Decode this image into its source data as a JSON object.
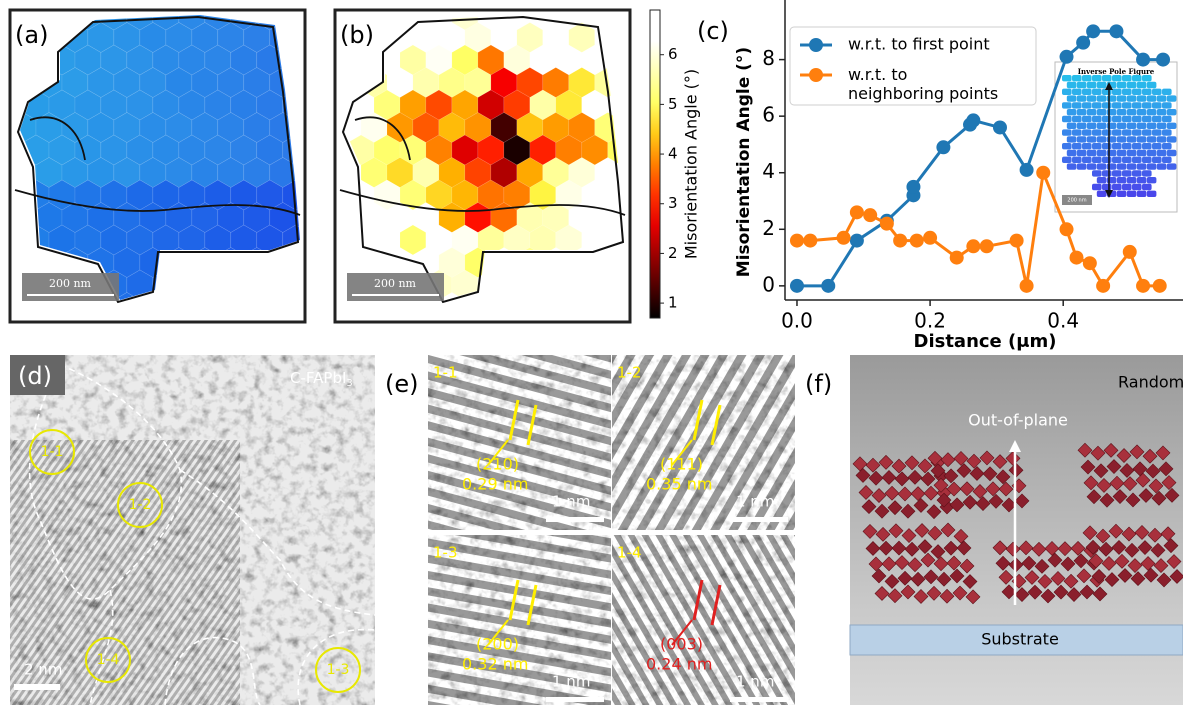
{
  "panels": {
    "a": {
      "label": "(a)",
      "scale_bar": "200 nm"
    },
    "b": {
      "label": "(b)",
      "scale_bar": "200 nm",
      "colorbar": {
        "label": "Misorientation Angle (°)",
        "lim": [
          0.7,
          6.9
        ],
        "ticks": [
          1,
          2,
          3,
          4,
          5,
          6
        ]
      }
    },
    "c": {
      "label": "(c)",
      "inset_title": "Inverse Pole Figure",
      "inset_scale_bar": "200 nm"
    },
    "d": {
      "label": "(d)",
      "material": "C-FAPbI",
      "material_subscript": "3",
      "regions": [
        "1-1",
        "1-2",
        "1-4",
        "1-3"
      ],
      "scale_bar": "2 nm"
    },
    "e": {
      "label": "(e)",
      "subpanels": [
        {
          "label": "1-1",
          "plane": "(210)",
          "spacing": "0.29 nm",
          "scale_bar": "1 nm"
        },
        {
          "label": "1-2",
          "plane": "(111)",
          "spacing": "0.35 nm",
          "scale_bar": "1 nm"
        },
        {
          "label": "1-3",
          "plane": "(200)",
          "spacing": "0.32 nm",
          "scale_bar": "1 nm"
        },
        {
          "label": "1-4",
          "plane": "(003)",
          "spacing": "0.24 nm",
          "scale_bar": "1 nm"
        }
      ]
    },
    "f": {
      "label": "(f)",
      "corner_text": "Random",
      "arrow_label": "Out-of-plane",
      "base_label": "Substrate"
    }
  },
  "chart_data": {
    "type": "line",
    "x_label": "Distance (μm)",
    "y_label": "Misorientation Angle (°)",
    "xlim": [
      -0.018,
      0.58
    ],
    "ylim": [
      -0.5,
      9.4
    ],
    "xticks": [
      {
        "value": 0,
        "label": "0.0"
      },
      0.2,
      0.4
    ],
    "yticks": [
      0,
      2,
      4,
      6,
      8
    ],
    "legend": "upper left",
    "series": [
      {
        "name": "w.r.t. to first point",
        "color": "#1f77b4",
        "x": [
          0,
          0.047,
          0.09,
          0.135,
          0.175,
          0.175,
          0.22,
          0.26,
          0.265,
          0.305,
          0.345,
          0.405,
          0.43,
          0.445,
          0.48,
          0.52,
          0.55
        ],
        "values": [
          0,
          0,
          1.6,
          2.3,
          3.2,
          3.5,
          4.9,
          5.7,
          5.85,
          5.6,
          4.1,
          8.1,
          8.6,
          9.0,
          9.0,
          8.0,
          8.0
        ]
      },
      {
        "name": "w.r.t. to\nneighboring points",
        "color": "#ff7f0e",
        "x": [
          0,
          0.02,
          0.07,
          0.09,
          0.11,
          0.135,
          0.155,
          0.18,
          0.2,
          0.24,
          0.265,
          0.285,
          0.33,
          0.345,
          0.37,
          0.405,
          0.42,
          0.44,
          0.46,
          0.5,
          0.52,
          0.545
        ],
        "values": [
          1.6,
          1.6,
          1.7,
          2.6,
          2.5,
          2.2,
          1.6,
          1.6,
          1.7,
          1.0,
          1.4,
          1.4,
          1.6,
          0,
          4.0,
          2.0,
          1.0,
          0.8,
          0,
          1.2,
          0,
          0
        ]
      }
    ]
  }
}
